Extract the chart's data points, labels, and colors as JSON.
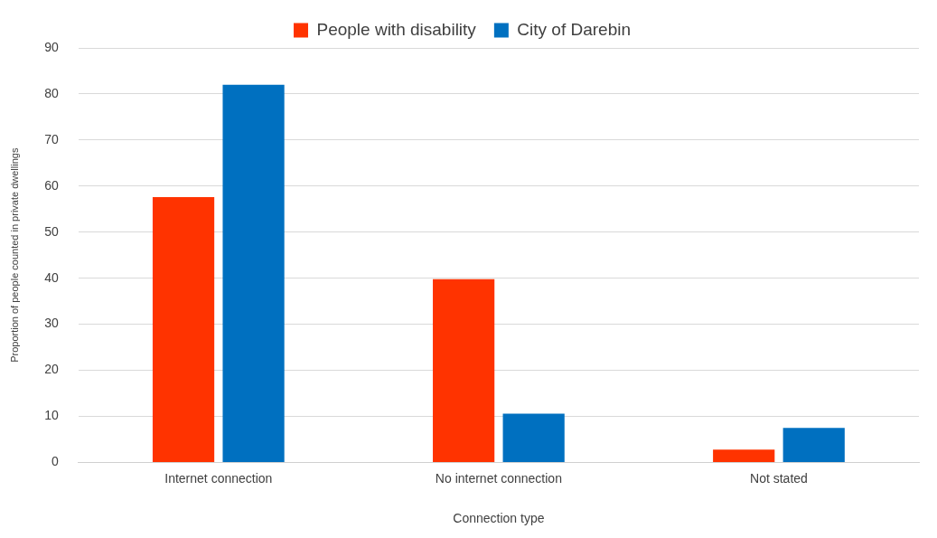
{
  "chart_data": {
    "type": "bar",
    "xlabel": "Connection type",
    "ylabel": "Proportion of people counted in private dwellings",
    "categories": [
      "Internet connection",
      "No internet connection",
      "Not stated"
    ],
    "series": [
      {
        "name": "People with disability",
        "color": "#ff3300",
        "values": [
          57.6,
          39.8,
          2.8
        ]
      },
      {
        "name": "City of Darebin",
        "color": "#0070c0",
        "values": [
          82,
          10.6,
          7.5
        ]
      }
    ],
    "ylim": [
      0,
      90
    ],
    "yticks": [
      0,
      10,
      20,
      30,
      40,
      50,
      60,
      70,
      80,
      90
    ],
    "grid": "y",
    "legend": "top"
  }
}
